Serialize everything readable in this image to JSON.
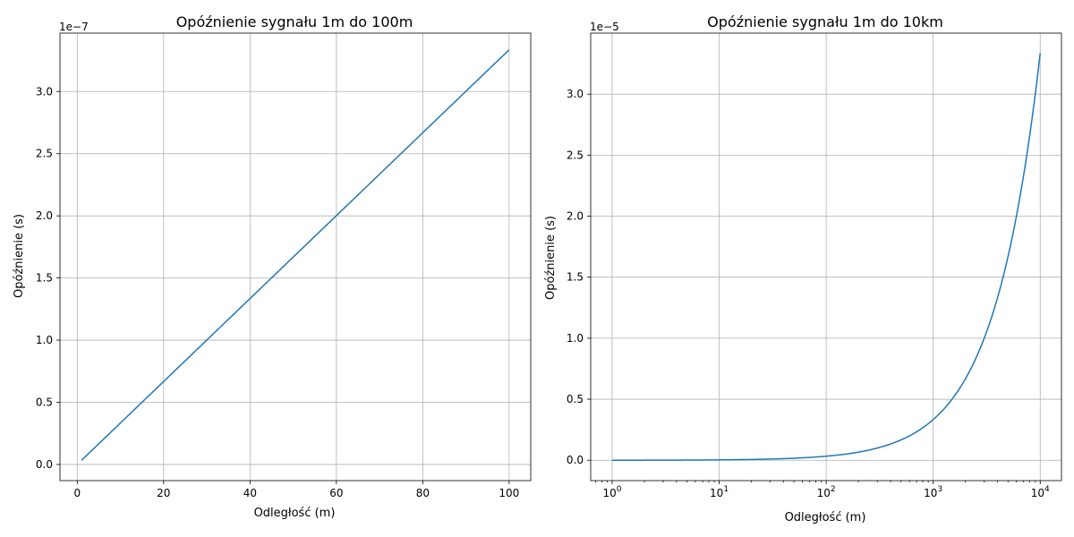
{
  "chart_data": [
    {
      "type": "line",
      "title": "Opóźnienie sygnału 1m do 100m",
      "xlabel": "Odległość (m)",
      "ylabel": "Opóźnienie (s)",
      "offset_label": "1e−7",
      "x_scale": "linear",
      "xlim": [
        -4,
        105
      ],
      "ylim": [
        -0.13,
        3.47
      ],
      "x_ticks": [
        0,
        20,
        40,
        60,
        80,
        100
      ],
      "x_tick_labels": [
        "0",
        "20",
        "40",
        "60",
        "80",
        "100"
      ],
      "y_ticks": [
        0.0,
        0.5,
        1.0,
        1.5,
        2.0,
        2.5,
        3.0
      ],
      "y_tick_labels": [
        "0.0",
        "0.5",
        "1.0",
        "1.5",
        "2.0",
        "2.5",
        "3.0"
      ],
      "grid": true,
      "series": [
        {
          "color": "#1f77b4",
          "x": [
            1,
            100
          ],
          "y": [
            0.0334,
            3.336
          ]
        }
      ]
    },
    {
      "type": "line",
      "title": "Opóźnienie sygnału 1m do 10km",
      "xlabel": "Odległość (m)",
      "ylabel": "Opóźnienie (s)",
      "offset_label": "1e−5",
      "x_scale": "log",
      "xlim": [
        0.63,
        15800
      ],
      "ylim": [
        -0.167,
        3.5
      ],
      "x_ticks": [
        1,
        10,
        100,
        1000,
        10000
      ],
      "x_tick_labels": [
        "10^0",
        "10^1",
        "10^2",
        "10^3",
        "10^4"
      ],
      "y_ticks": [
        0.0,
        0.5,
        1.0,
        1.5,
        2.0,
        2.5,
        3.0
      ],
      "y_tick_labels": [
        "0.0",
        "0.5",
        "1.0",
        "1.5",
        "2.0",
        "2.5",
        "3.0"
      ],
      "grid": true,
      "series": [
        {
          "color": "#1f77b4",
          "x": [
            1,
            10000
          ],
          "y": [
            0.0,
            3.336
          ]
        }
      ]
    }
  ]
}
